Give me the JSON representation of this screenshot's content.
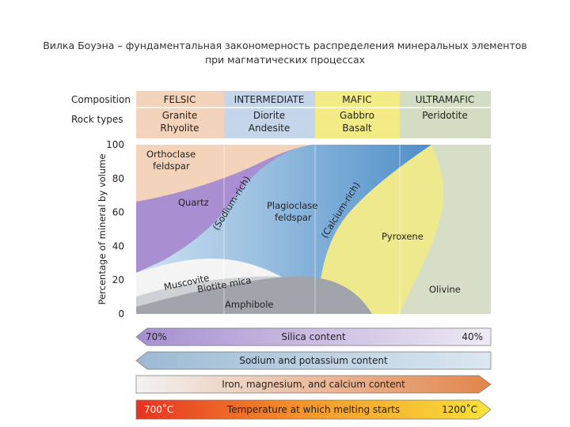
{
  "title": [
    "Вилка Боуэна – фундаментальная закономерность распределения минеральных элементов",
    "при магматических процессах"
  ],
  "table": {
    "rows": [
      [
        "Composition",
        "FELSIC",
        "INTERMEDIATE",
        "MAFIC",
        "ULTRAMAFIC"
      ],
      [
        "Rock types",
        [
          "Granite",
          "Rhyolite"
        ],
        [
          "Diorite",
          "Andesite"
        ],
        [
          "Gabbro",
          "Basalt"
        ],
        [
          "Peridotite"
        ]
      ]
    ]
  },
  "axis": {
    "label": "Percentage of mineral by volume",
    "ticks": [
      100,
      80,
      60,
      40,
      20,
      0
    ]
  },
  "minerals": {
    "orthoclase": [
      "Orthoclase",
      "feldspar"
    ],
    "quartz": "Quartz",
    "plagioclase": [
      "Plagioclase",
      "feldspar"
    ],
    "sodium": "(Sodium-rich)",
    "calcium": "(Calcium-rich)",
    "pyroxene": "Pyroxene",
    "olivine": "Olivine",
    "muscovite": "Muscovite",
    "biotite": "Biotite mica",
    "amphibole": "Amphibole"
  },
  "arrows": [
    {
      "left": "70%",
      "label": "Silica content",
      "right": "40%"
    },
    {
      "label": "Sodium and potassium content"
    },
    {
      "label": "Iron, magnesium, and calcium content"
    },
    {
      "left": "700˚C",
      "label": "Temperature at which melting starts",
      "right": "1200˚C"
    }
  ]
}
